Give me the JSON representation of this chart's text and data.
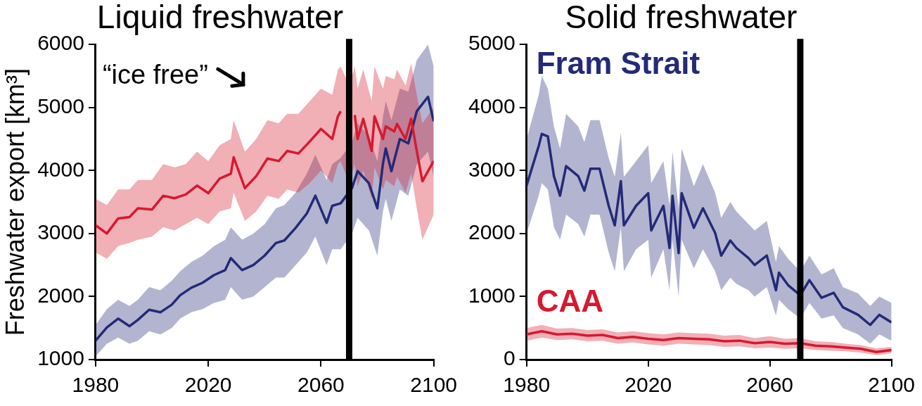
{
  "chart_data": [
    {
      "type": "line",
      "title": "Liquid freshwater",
      "ylabel": "Freshwater export [km³]",
      "xlim": [
        1980,
        2100
      ],
      "xticks": [
        1980,
        2020,
        2060,
        2100
      ],
      "ylim": [
        1000,
        6000
      ],
      "yticks": [
        1000,
        2000,
        3000,
        4000,
        5000,
        6000
      ],
      "grid": false,
      "legend": false,
      "marker": "none",
      "line_style": "solid",
      "ref_lines": [
        {
          "axis": "x",
          "value": 2070,
          "color": "#000000"
        }
      ],
      "annotations": [
        "“ice free”"
      ],
      "series": [
        {
          "color": "#d7192f",
          "x": [
            1980,
            1984,
            1988,
            1992,
            1995,
            2000,
            2004,
            2008,
            2012,
            2016,
            2020,
            2024,
            2028,
            2029,
            2033,
            2037,
            2041,
            2045,
            2048,
            2052,
            2056,
            2060,
            2064,
            2066,
            2067,
            2070,
            2072,
            2073,
            2075,
            2078,
            2079,
            2082,
            2083,
            2086,
            2087,
            2090,
            2092,
            2094,
            2096,
            2100
          ],
          "values": [
            3130,
            3000,
            3240,
            3260,
            3400,
            3380,
            3600,
            3560,
            3620,
            3760,
            3640,
            3870,
            3950,
            4210,
            3720,
            3910,
            4190,
            4150,
            4310,
            4270,
            4460,
            4660,
            4500,
            4860,
            4940,
            null,
            4880,
            4500,
            4820,
            4310,
            4860,
            4500,
            4700,
            4620,
            4740,
            4500,
            4820,
            4310,
            3830,
            4150
          ],
          "lower": [
            2700,
            2600,
            2800,
            2850,
            2900,
            2950,
            3100,
            3050,
            3150,
            3250,
            3150,
            3350,
            3400,
            3650,
            3200,
            3350,
            3600,
            3550,
            3700,
            3650,
            3800,
            4000,
            3800,
            4100,
            4150,
            3800,
            4100,
            3750,
            4000,
            3550,
            4050,
            3700,
            3850,
            3750,
            3900,
            3650,
            3950,
            3400,
            2900,
            3300
          ],
          "upper": [
            3550,
            3450,
            3700,
            3700,
            3850,
            3850,
            4100,
            4050,
            4100,
            4300,
            4150,
            4400,
            4500,
            4800,
            4300,
            4500,
            4800,
            4750,
            4900,
            4900,
            5100,
            5300,
            5200,
            5600,
            5650,
            5350,
            5650,
            5300,
            5600,
            5100,
            5650,
            5300,
            5500,
            5450,
            5600,
            5350,
            5700,
            5200,
            4750,
            5000
          ]
        },
        {
          "color": "#242a78",
          "x": [
            1980,
            1984,
            1988,
            1992,
            1995,
            1999,
            2003,
            2007,
            2010,
            2014,
            2018,
            2022,
            2026,
            2028,
            2032,
            2036,
            2040,
            2044,
            2047,
            2051,
            2055,
            2058,
            2062,
            2064,
            2067,
            2071,
            2073,
            2077,
            2080,
            2082,
            2083,
            2085,
            2088,
            2091,
            2094,
            2098,
            2100
          ],
          "values": [
            1300,
            1510,
            1650,
            1530,
            1630,
            1790,
            1750,
            1870,
            2020,
            2140,
            2220,
            2340,
            2420,
            2610,
            2420,
            2500,
            2650,
            2850,
            2890,
            3090,
            3320,
            3600,
            3170,
            3440,
            3480,
            3720,
            3990,
            3800,
            3400,
            4110,
            4350,
            3990,
            4500,
            4430,
            4940,
            5170,
            4780
          ],
          "lower": [
            1050,
            1250,
            1350,
            1250,
            1300,
            1450,
            1400,
            1500,
            1650,
            1750,
            1800,
            1900,
            1950,
            2150,
            1950,
            2000,
            2150,
            2300,
            2300,
            2500,
            2700,
            2950,
            2500,
            2750,
            2750,
            3000,
            3250,
            3050,
            2650,
            3350,
            3550,
            3200,
            3700,
            3600,
            4100,
            4300,
            3900
          ],
          "upper": [
            1550,
            1800,
            1950,
            1850,
            1950,
            2150,
            2100,
            2250,
            2400,
            2550,
            2650,
            2800,
            2900,
            3100,
            2900,
            3000,
            3150,
            3400,
            3450,
            3650,
            3950,
            4250,
            3850,
            4100,
            4200,
            4450,
            4750,
            4550,
            4150,
            4850,
            5100,
            4800,
            5300,
            5250,
            5750,
            6000,
            5650
          ]
        }
      ]
    },
    {
      "type": "line",
      "title": "Solid freshwater",
      "xlim": [
        1980,
        2100
      ],
      "xticks": [
        1980,
        2020,
        2060,
        2100
      ],
      "ylim": [
        0,
        5000
      ],
      "yticks": [
        0,
        1000,
        2000,
        3000,
        4000,
        5000
      ],
      "grid": false,
      "legend": false,
      "marker": "none",
      "line_style": "solid",
      "ref_lines": [
        {
          "axis": "x",
          "value": 2070,
          "color": "#000000"
        }
      ],
      "series": [
        {
          "name": "Fram Strait",
          "color": "#242a78",
          "x": [
            1980,
            1984,
            1985,
            1987,
            1989,
            1991,
            1993,
            1997,
            1999,
            2001,
            2004,
            2007,
            2009,
            2011,
            2012,
            2016,
            2020,
            2021,
            2025,
            2027,
            2028,
            2030,
            2031,
            2035,
            2038,
            2042,
            2044,
            2047,
            2049,
            2053,
            2055,
            2059,
            2062,
            2063,
            2066,
            2070,
            2073,
            2077,
            2081,
            2084,
            2089,
            2093,
            2096,
            2100
          ],
          "values": [
            2760,
            3390,
            3580,
            3540,
            2910,
            2600,
            3070,
            2910,
            2680,
            3030,
            3030,
            2440,
            2130,
            2830,
            2130,
            2440,
            2640,
            2050,
            2440,
            1770,
            2600,
            1690,
            2640,
            2090,
            2400,
            2010,
            1650,
            1890,
            1770,
            1610,
            1500,
            1650,
            1100,
            1380,
            1180,
            1020,
            1260,
            980,
            1060,
            830,
            710,
            550,
            710,
            590
          ],
          "lower": [
            2000,
            2600,
            2800,
            2700,
            2100,
            1900,
            2300,
            2150,
            1950,
            2300,
            2300,
            1700,
            1400,
            2100,
            1400,
            1750,
            1900,
            1300,
            1750,
            1100,
            1900,
            1000,
            1900,
            1450,
            1750,
            1400,
            1100,
            1300,
            1200,
            1100,
            1000,
            1150,
            700,
            950,
            800,
            650,
            900,
            650,
            700,
            500,
            400,
            250,
            400,
            300
          ],
          "upper": [
            3500,
            4200,
            4500,
            4300,
            3700,
            3350,
            3900,
            3700,
            3450,
            3800,
            3800,
            3200,
            2900,
            3600,
            2900,
            3150,
            3400,
            2800,
            3150,
            2450,
            3300,
            2400,
            3350,
            2750,
            3100,
            2650,
            2250,
            2500,
            2350,
            2150,
            2050,
            2200,
            1550,
            1800,
            1600,
            1400,
            1650,
            1350,
            1450,
            1150,
            1050,
            850,
            1000,
            900
          ]
        },
        {
          "name": "CAA",
          "color": "#d7192f",
          "x": [
            1980,
            1985,
            1990,
            1995,
            2000,
            2005,
            2010,
            2015,
            2020,
            2025,
            2030,
            2035,
            2040,
            2045,
            2050,
            2055,
            2060,
            2065,
            2070,
            2075,
            2080,
            2085,
            2090,
            2095,
            2100
          ],
          "values": [
            400,
            450,
            400,
            410,
            380,
            390,
            340,
            360,
            330,
            310,
            340,
            330,
            320,
            290,
            300,
            260,
            280,
            250,
            260,
            220,
            210,
            190,
            170,
            120,
            150
          ],
          "lower": [
            300,
            350,
            310,
            320,
            290,
            300,
            250,
            270,
            240,
            220,
            250,
            240,
            230,
            200,
            210,
            180,
            190,
            170,
            180,
            150,
            140,
            130,
            110,
            70,
            100
          ],
          "upper": [
            500,
            550,
            490,
            500,
            470,
            480,
            430,
            450,
            420,
            400,
            430,
            420,
            410,
            380,
            390,
            340,
            370,
            330,
            340,
            290,
            280,
            250,
            230,
            180,
            200
          ]
        }
      ]
    }
  ]
}
